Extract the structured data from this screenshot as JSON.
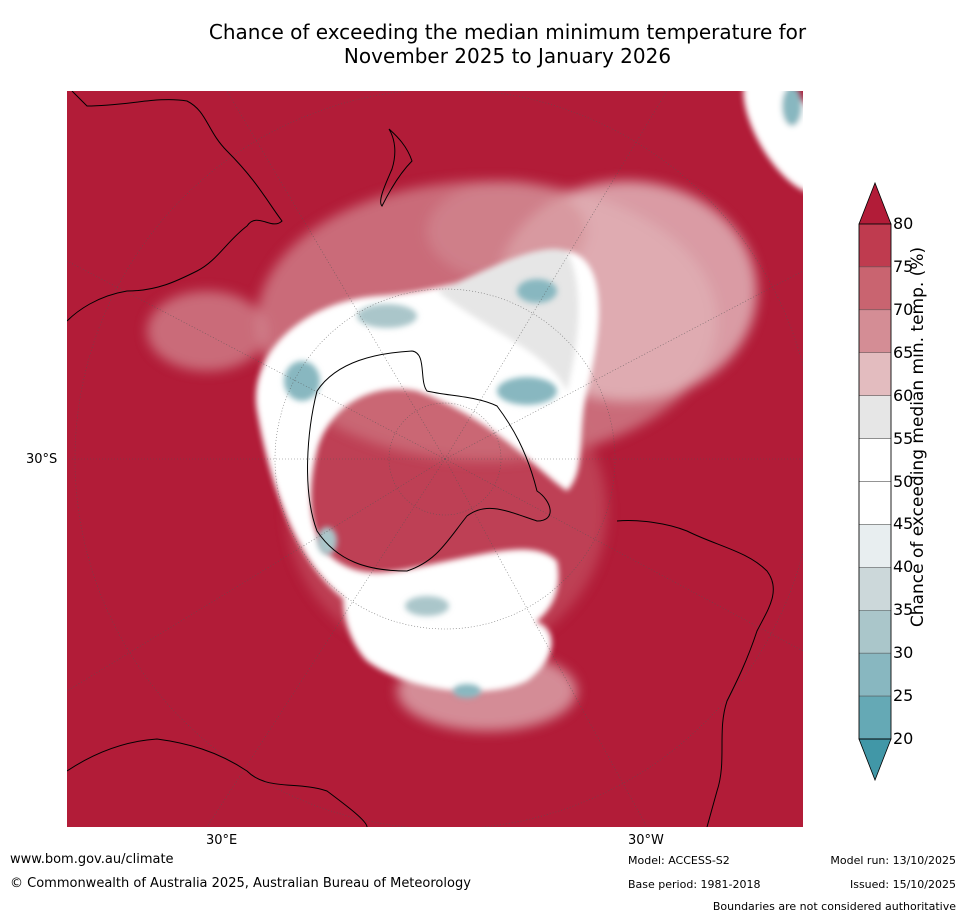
{
  "title": {
    "line1": "Chance of exceeding the median minimum temperature for",
    "line2": "November 2025 to January 2026"
  },
  "map": {
    "projection": "south polar stereographic",
    "lat_label": "30°S",
    "lon_labels": [
      "30°E",
      "30°W"
    ],
    "colors": {
      "high": "#b21c38",
      "mid": "#ffffff",
      "low": "#4ba0b0",
      "land_outline": "#000000"
    }
  },
  "colorbar": {
    "label": "Chance of exceeding median min. temp. (%)",
    "ticks": [
      "80",
      "75",
      "70",
      "65",
      "60",
      "55",
      "50",
      "45",
      "40",
      "35",
      "30",
      "25",
      "20"
    ],
    "bands": [
      {
        "range": "80+",
        "color": "#b21c38"
      },
      {
        "range": "75-80",
        "color": "#bf3b4f"
      },
      {
        "range": "70-75",
        "color": "#c96470"
      },
      {
        "range": "65-70",
        "color": "#d48d95"
      },
      {
        "range": "60-65",
        "color": "#e3bcbf"
      },
      {
        "range": "55-60",
        "color": "#e6e6e6"
      },
      {
        "range": "50-55",
        "color": "#ffffff"
      },
      {
        "range": "45-50",
        "color": "#ffffff"
      },
      {
        "range": "40-45",
        "color": "#e8eef0"
      },
      {
        "range": "35-40",
        "color": "#ccd8da"
      },
      {
        "range": "30-35",
        "color": "#aac6ca"
      },
      {
        "range": "25-30",
        "color": "#88b7c0"
      },
      {
        "range": "20-25",
        "color": "#65a9b5"
      },
      {
        "range": "<20",
        "color": "#4197a7"
      }
    ]
  },
  "footer": {
    "url": "www.bom.gov.au/climate",
    "copyright": "© Commonwealth of Australia 2025, Australian Bureau of Meteorology",
    "model": "Model: ACCESS-S2",
    "base_period": "Base period: 1981-2018",
    "model_run": "Model run: 13/10/2025",
    "issued": "Issued: 15/10/2025",
    "disclaimer": "Boundaries are not considered authoritative"
  }
}
